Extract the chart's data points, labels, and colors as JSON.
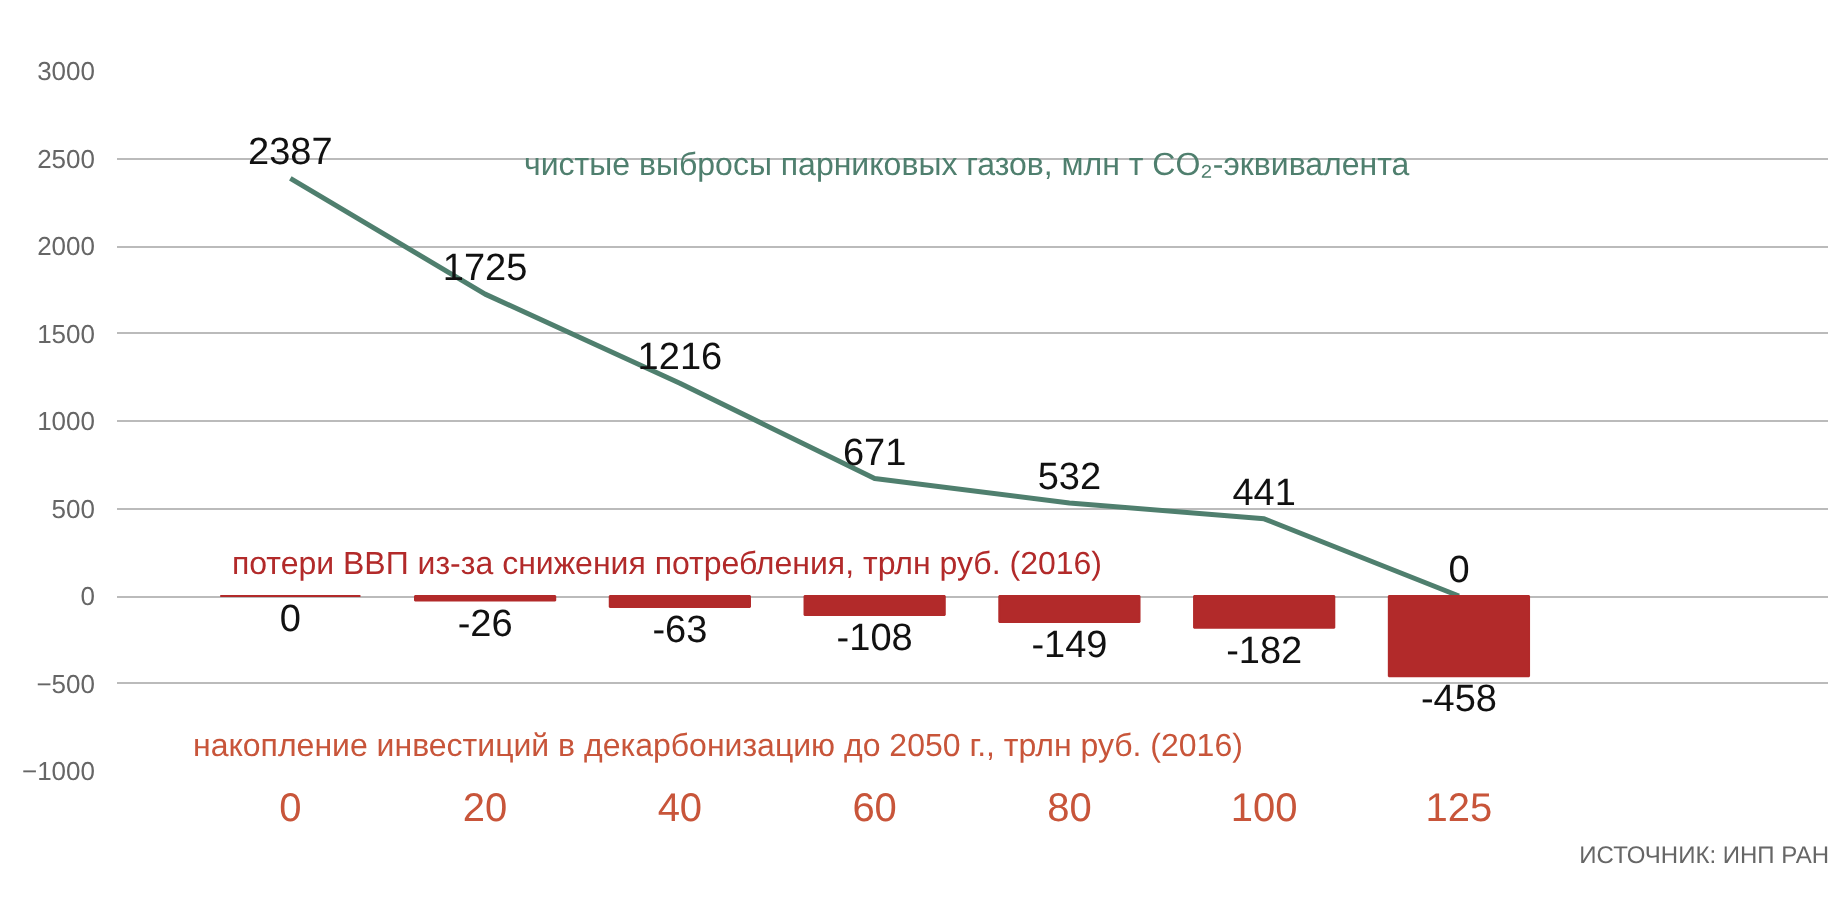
{
  "chart_data": {
    "type": "bar",
    "categories": [
      "0",
      "20",
      "40",
      "60",
      "80",
      "100",
      "125"
    ],
    "xlabel": "накопление инвестиций в декарбонизацию до 2050 г., трлн руб. (2016)",
    "series": [
      {
        "type": "line",
        "name": "чистые выбросы парниковых газов, млн т CO₂-эквивалента",
        "color": "#4f7f6e",
        "values": [
          2387,
          1725,
          1216,
          671,
          532,
          441,
          0
        ]
      },
      {
        "name": "потери ВВП из-за снижения потребления, трлн руб. (2016)",
        "color": "#b22a2a",
        "values": [
          0,
          -26,
          -63,
          -108,
          -149,
          -182,
          -458
        ]
      }
    ],
    "ylim": [
      -1000,
      3000
    ],
    "yticks": [
      -1000,
      -500,
      0,
      500,
      1000,
      1500,
      2000,
      2500,
      3000
    ],
    "grid": "y",
    "data_labels": true,
    "legend": false,
    "marker": "none",
    "line_style": "solid",
    "annotations": [
      "ИСТОЧНИК: ИНП РАН"
    ]
  }
}
